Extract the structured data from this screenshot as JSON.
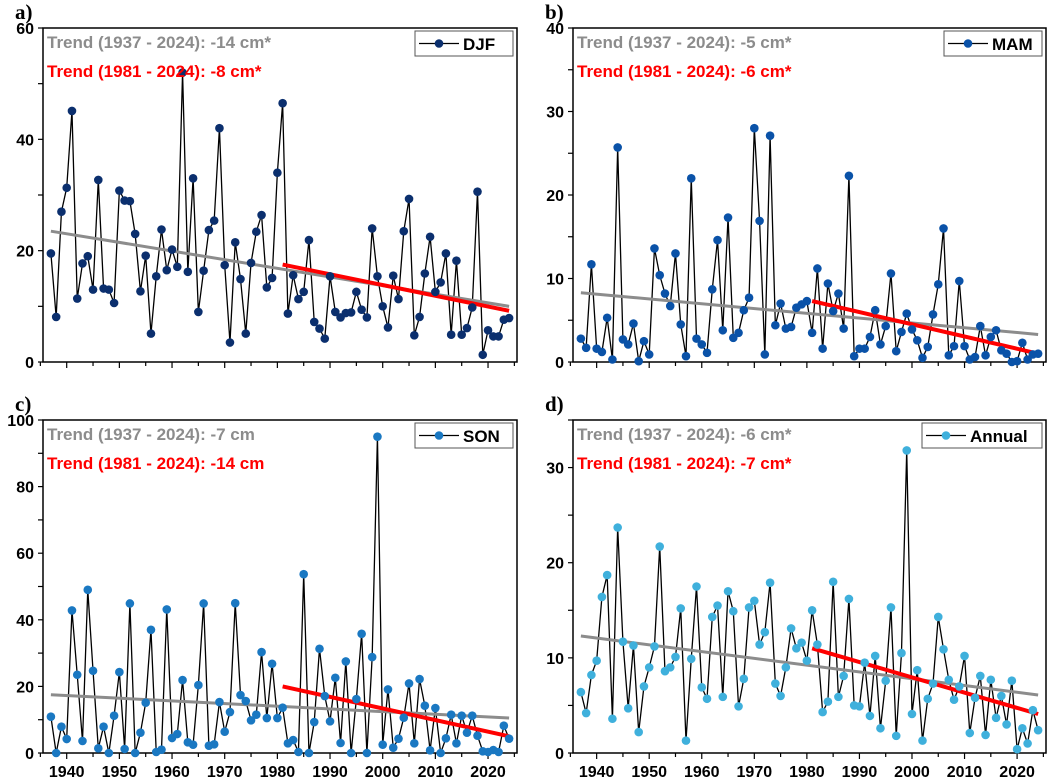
{
  "chart_data": [
    {
      "type": "line",
      "panel_label": "a)",
      "series_name": "DJF",
      "x_start": 1937,
      "x_end": 2024,
      "xlim": [
        1937,
        2024
      ],
      "ylim": [
        0,
        60
      ],
      "yticks": [
        0,
        20,
        40,
        60
      ],
      "yminor": 10,
      "xticks": [
        1940,
        1950,
        1960,
        1970,
        1980,
        1990,
        2000,
        2010,
        2020
      ],
      "show_xtick_labels": false,
      "legend_position": "top-right",
      "marker_color": "#0b2f6e",
      "values": [
        19.5,
        8.1,
        27,
        31.3,
        45.1,
        11.4,
        17.7,
        19,
        13,
        32.7,
        13.2,
        13,
        10.6,
        30.8,
        29,
        28.9,
        23,
        12.7,
        19.1,
        5.1,
        15.4,
        23.8,
        16.5,
        20.2,
        17.1,
        52,
        16.2,
        33,
        9,
        16.4,
        23.7,
        25.4,
        42,
        17.4,
        3.5,
        21.5,
        14.9,
        5.1,
        17.8,
        23.4,
        26.4,
        13.4,
        15.1,
        34,
        46.5,
        8.7,
        15.6,
        11.3,
        12.6,
        21.9,
        7.2,
        6,
        4.2,
        15.4,
        9,
        8,
        8.8,
        8.9,
        12.6,
        9.4,
        8,
        24,
        15.4,
        10,
        6.2,
        15.5,
        11.3,
        23.5,
        29.3,
        4.8,
        8.1,
        15.9,
        22.5,
        12.6,
        14.3,
        19.5,
        4.9,
        18.2,
        4.9,
        6.1,
        9.8,
        30.6,
        1.3,
        5.7,
        4.6,
        4.6,
        7.6,
        7.9
      ],
      "trends": [
        {
          "label": "Trend (1937 - 2024): -14 cm*",
          "color": "#8c8c8c",
          "x": [
            1937,
            2024
          ],
          "y": [
            23.5,
            10.0
          ]
        },
        {
          "label": "Trend (1981 - 2024): -8 cm*",
          "color": "#ff0000",
          "x": [
            1981,
            2024
          ],
          "y": [
            17.5,
            9.2
          ]
        }
      ]
    },
    {
      "type": "line",
      "panel_label": "b)",
      "series_name": "MAM",
      "x_start": 1937,
      "x_end": 2024,
      "xlim": [
        1937,
        2024
      ],
      "ylim": [
        0,
        40
      ],
      "yticks": [
        0,
        10,
        20,
        30,
        40
      ],
      "yminor": 5,
      "xticks": [
        1940,
        1950,
        1960,
        1970,
        1980,
        1990,
        2000,
        2010,
        2020
      ],
      "show_xtick_labels": false,
      "legend_position": "top-right",
      "marker_color": "#0a52a8",
      "values": [
        2.8,
        1.7,
        11.7,
        1.6,
        1.2,
        5.3,
        0.3,
        25.7,
        2.7,
        2.1,
        4.6,
        0.1,
        2.5,
        0.9,
        13.6,
        10.4,
        8.2,
        6.7,
        13,
        4.5,
        0.7,
        22,
        2.8,
        2.1,
        1.1,
        8.7,
        14.6,
        3.8,
        17.3,
        2.9,
        3.5,
        6.2,
        7.7,
        28,
        16.9,
        0.9,
        27.1,
        4.4,
        7,
        4,
        4.2,
        6.5,
        6.9,
        7.3,
        3.5,
        11.2,
        1.6,
        9.4,
        6.1,
        8.2,
        4.0,
        22.3,
        0.7,
        1.6,
        1.6,
        3,
        6.2,
        2.1,
        4.3,
        10.6,
        1.3,
        3.6,
        5.8,
        3.9,
        2.6,
        0.5,
        1.8,
        5.7,
        9.3,
        16,
        0.8,
        1.9,
        9.7,
        1.9,
        0.3,
        0.6,
        4.3,
        0.8,
        3,
        3.8,
        1.4,
        1,
        0,
        0.1,
        2.3,
        0.3,
        0.9,
        1
      ],
      "trends": [
        {
          "label": "Trend (1937 - 2024): -5 cm*",
          "color": "#8c8c8c",
          "x": [
            1937,
            2024
          ],
          "y": [
            8.3,
            3.3
          ]
        },
        {
          "label": "Trend (1981 - 2024): -6 cm*",
          "color": "#ff0000",
          "x": [
            1981,
            2024
          ],
          "y": [
            7.3,
            1.0
          ]
        }
      ]
    },
    {
      "type": "line",
      "panel_label": "c)",
      "series_name": "SON",
      "x_start": 1937,
      "x_end": 2024,
      "xlim": [
        1937,
        2024
      ],
      "ylim": [
        0,
        100
      ],
      "yticks": [
        0,
        20,
        40,
        60,
        80,
        100
      ],
      "yminor": 10,
      "xticks": [
        1940,
        1950,
        1960,
        1970,
        1980,
        1990,
        2000,
        2010,
        2020
      ],
      "show_xtick_labels": true,
      "legend_position": "top-right",
      "marker_color": "#1a78c2",
      "values": [
        10.9,
        0,
        7.9,
        4.2,
        42.8,
        23.5,
        3.6,
        49,
        24.7,
        1.4,
        7.9,
        0,
        11.2,
        24.3,
        1.2,
        44.9,
        0,
        6.1,
        15.1,
        37,
        0.3,
        1,
        43.1,
        4.5,
        5.7,
        21.9,
        3.2,
        2.5,
        20.4,
        44.9,
        2.2,
        2.6,
        15.3,
        6.4,
        12.3,
        45,
        17.4,
        15.6,
        9.8,
        11.5,
        30.3,
        10.5,
        26.8,
        10.5,
        13.6,
        2.9,
        3.9,
        0.3,
        53.7,
        0,
        9.3,
        31.3,
        17.1,
        9.5,
        22.6,
        3,
        27.5,
        0,
        16.2,
        35.8,
        0,
        28.8,
        95,
        2.5,
        19.1,
        1.6,
        4.3,
        10.6,
        20.9,
        2.9,
        22.2,
        14.2,
        0.8,
        13.5,
        0,
        4.4,
        11.5,
        2.9,
        11.2,
        6.1,
        11.2,
        5.2,
        0.5,
        0.3,
        0.9,
        0.3,
        8.2,
        4.3
      ],
      "trends": [
        {
          "label": "Trend (1937 - 2024): -7 cm",
          "color": "#8c8c8c",
          "x": [
            1937,
            2024
          ],
          "y": [
            17.5,
            10.5
          ]
        },
        {
          "label": "Trend (1981 - 2024): -14 cm",
          "color": "#ff0000",
          "x": [
            1981,
            2024
          ],
          "y": [
            20.0,
            5.0
          ]
        }
      ]
    },
    {
      "type": "line",
      "panel_label": "d)",
      "series_name": "Annual",
      "x_start": 1937,
      "x_end": 2024,
      "xlim": [
        1937,
        2024
      ],
      "ylim": [
        0,
        35
      ],
      "yticks": [
        0,
        10,
        20,
        30
      ],
      "yminor": 5,
      "xticks": [
        1940,
        1950,
        1960,
        1970,
        1980,
        1990,
        2000,
        2010,
        2020
      ],
      "show_xtick_labels": true,
      "legend_position": "top-right",
      "marker_color": "#3fb0dc",
      "values": [
        6.4,
        4.2,
        8.2,
        9.7,
        16.4,
        18.7,
        3.6,
        23.7,
        11.7,
        4.7,
        11.3,
        2.2,
        7,
        9,
        11.2,
        21.7,
        8.6,
        9,
        10.1,
        15.2,
        1.3,
        9.9,
        17.5,
        6.9,
        5.7,
        14.3,
        15.5,
        5.9,
        17,
        14.9,
        4.9,
        7.8,
        15.3,
        16,
        11.4,
        12.7,
        17.9,
        7.3,
        6,
        9,
        13.1,
        11,
        11.6,
        9.7,
        15,
        11.4,
        4.3,
        5.4,
        18,
        5.9,
        8.1,
        16.2,
        5,
        4.9,
        9.5,
        3.9,
        10.2,
        2.6,
        7.6,
        15.3,
        1.8,
        10.5,
        31.8,
        4.1,
        8.7,
        1.3,
        5.7,
        7.3,
        14.3,
        10.9,
        7.7,
        5.6,
        7,
        10.2,
        2.1,
        5.8,
        8.1,
        1.9,
        7.7,
        3.7,
        6,
        3,
        7.6,
        0.4,
        2.6,
        1,
        4.5,
        2.4
      ],
      "trends": [
        {
          "label": "Trend (1937 - 2024): -6 cm*",
          "color": "#8c8c8c",
          "x": [
            1937,
            2024
          ],
          "y": [
            12.3,
            6.1
          ]
        },
        {
          "label": "Trend (1981 - 2024): -7 cm*",
          "color": "#ff0000",
          "x": [
            1981,
            2024
          ],
          "y": [
            11.0,
            4.1
          ]
        }
      ]
    }
  ]
}
